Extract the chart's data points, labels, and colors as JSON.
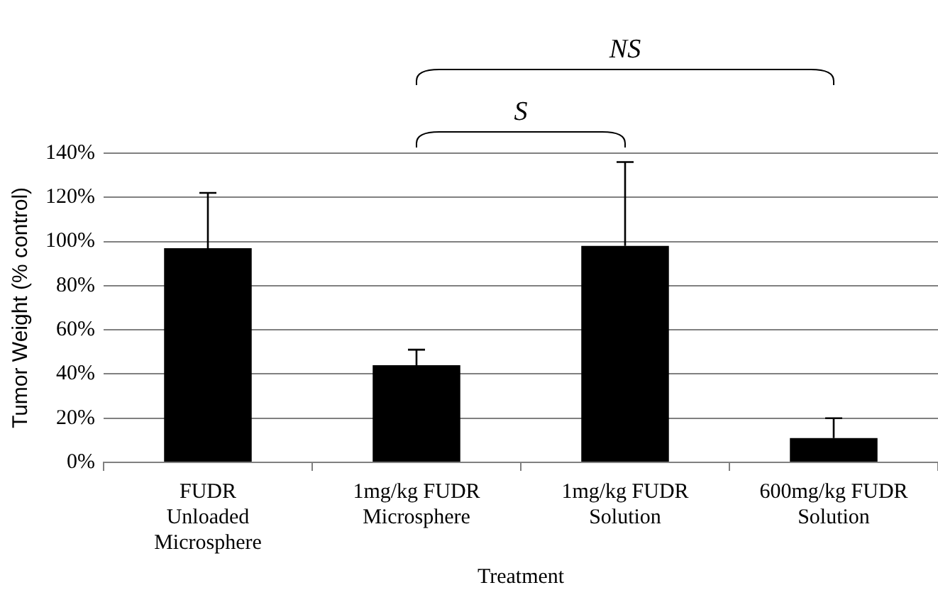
{
  "chart_data": {
    "type": "bar",
    "xlabel": "Treatment",
    "ylabel": "Tumor Weight (% control)",
    "categories": [
      "FUDR\nUnloaded\nMicrosphere",
      "1mg/kg FUDR\nMicrosphere",
      "1mg/kg FUDR\nSolution",
      "600mg/kg FUDR\nSolution"
    ],
    "values": [
      97,
      44,
      98,
      11
    ],
    "color": "#000000",
    "errors": [
      [
        97,
        122
      ],
      [
        44,
        51
      ],
      [
        98,
        136
      ],
      [
        11,
        20
      ]
    ],
    "ylim": [
      0,
      140
    ],
    "yticks": [
      {
        "value": 0,
        "label": "0%"
      },
      {
        "value": 20,
        "label": "20%"
      },
      {
        "value": 40,
        "label": "40%"
      },
      {
        "value": 60,
        "label": "60%"
      },
      {
        "value": 80,
        "label": "80%"
      },
      {
        "value": 100,
        "label": "100%"
      },
      {
        "value": 120,
        "label": "120%"
      },
      {
        "value": 140,
        "label": "140%"
      }
    ],
    "grid": "y",
    "legend": false,
    "annotations": [
      "S",
      "NS"
    ]
  }
}
